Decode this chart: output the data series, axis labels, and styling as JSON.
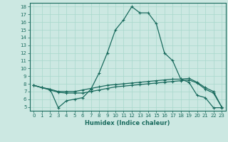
{
  "xlabel": "Humidex (Indice chaleur)",
  "background_color": "#cce8e2",
  "line_color": "#1a6b5e",
  "xlim": [
    -0.5,
    23.5
  ],
  "ylim": [
    4.5,
    18.5
  ],
  "xticks": [
    0,
    1,
    2,
    3,
    4,
    5,
    6,
    7,
    8,
    9,
    10,
    11,
    12,
    13,
    14,
    15,
    16,
    17,
    18,
    19,
    20,
    21,
    22,
    23
  ],
  "yticks": [
    5,
    6,
    7,
    8,
    9,
    10,
    11,
    12,
    13,
    14,
    15,
    16,
    17,
    18
  ],
  "line1_x": [
    0,
    1,
    2,
    3,
    4,
    5,
    6,
    7,
    8,
    9,
    10,
    11,
    12,
    13,
    14,
    15,
    16,
    17,
    18,
    19,
    20,
    21,
    22,
    23
  ],
  "line1_y": [
    7.8,
    7.5,
    7.3,
    4.9,
    5.8,
    6.0,
    6.2,
    7.3,
    9.4,
    12.0,
    15.0,
    16.3,
    18.0,
    17.2,
    17.2,
    15.8,
    12.0,
    11.0,
    8.6,
    8.2,
    6.5,
    6.2,
    4.9,
    4.9
  ],
  "line2_x": [
    0,
    1,
    2,
    3,
    4,
    5,
    6,
    7,
    8,
    9,
    10,
    11,
    12,
    13,
    14,
    15,
    16,
    17,
    18,
    19,
    20,
    21,
    22,
    23
  ],
  "line2_y": [
    7.8,
    7.5,
    7.3,
    7.0,
    7.0,
    7.0,
    7.2,
    7.4,
    7.6,
    7.8,
    7.9,
    8.0,
    8.1,
    8.2,
    8.3,
    8.4,
    8.5,
    8.6,
    8.6,
    8.7,
    8.2,
    7.5,
    7.0,
    5.0
  ],
  "line3_x": [
    0,
    1,
    2,
    3,
    4,
    5,
    6,
    7,
    8,
    9,
    10,
    11,
    12,
    13,
    14,
    15,
    16,
    17,
    18,
    19,
    20,
    21,
    22,
    23
  ],
  "line3_y": [
    7.8,
    7.5,
    7.2,
    6.9,
    6.8,
    6.8,
    6.8,
    7.0,
    7.2,
    7.4,
    7.6,
    7.7,
    7.8,
    7.9,
    8.0,
    8.1,
    8.2,
    8.3,
    8.4,
    8.5,
    8.1,
    7.3,
    6.8,
    5.0
  ],
  "grid_color": "#a8d8cc",
  "marker": "+",
  "markersize": 3,
  "linewidth": 0.9,
  "tick_fontsize": 5,
  "xlabel_fontsize": 6
}
